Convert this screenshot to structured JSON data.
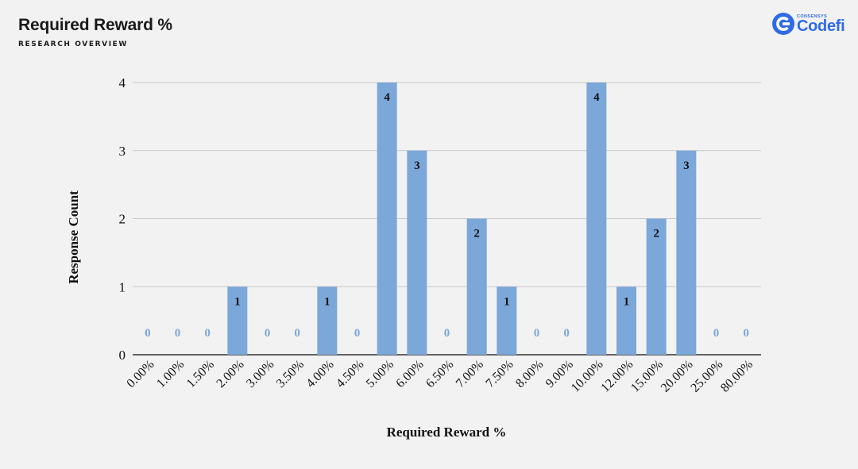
{
  "header": {
    "title": "Required Reward %",
    "subtitle": "RESEARCH OVERVIEW"
  },
  "logo": {
    "small_text": "CONSENSYS",
    "name": "Codefi",
    "color": "#2f6be8"
  },
  "chart_data": {
    "type": "bar",
    "title": "",
    "xlabel": "Required Reward %",
    "ylabel": "Response Count",
    "categories": [
      "0.00%",
      "1.00%",
      "1.50%",
      "2.00%",
      "3.00%",
      "3.50%",
      "4.00%",
      "4.50%",
      "5.00%",
      "6.00%",
      "6.50%",
      "7.00%",
      "7.50%",
      "8.00%",
      "9.00%",
      "10.00%",
      "12.00%",
      "15.00%",
      "20.00%",
      "25.00%",
      "80.00%"
    ],
    "values": [
      0,
      0,
      0,
      1,
      0,
      0,
      1,
      0,
      4,
      3,
      0,
      2,
      1,
      0,
      0,
      4,
      1,
      2,
      3,
      0,
      0
    ],
    "ylim": [
      0,
      4
    ],
    "yticks": [
      0,
      1,
      2,
      3,
      4
    ],
    "grid": true,
    "legend": "none",
    "bar_color": "#7ba7d9",
    "zero_label_color": "#7ba7d9",
    "label_color": "#111111"
  }
}
